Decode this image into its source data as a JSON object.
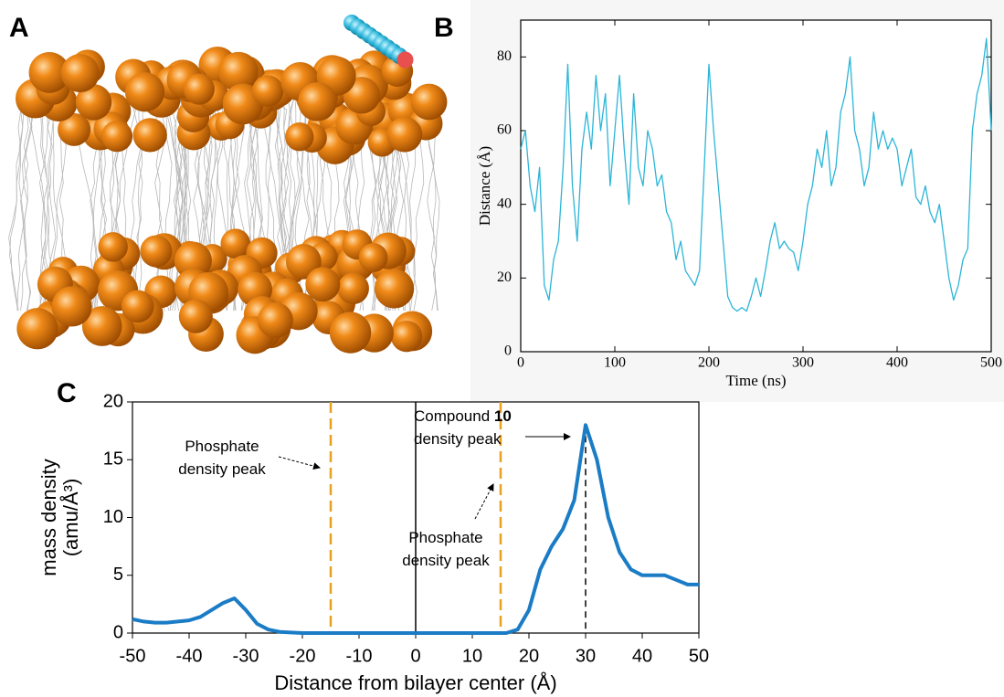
{
  "panel_labels": [
    "A",
    "B",
    "C"
  ],
  "chart_data": [
    {
      "type": "line",
      "xlabel": "Time (ns)",
      "ylabel": [
        "Distance (Å)"
      ],
      "xlim": [
        0,
        500
      ],
      "ylim": [
        0,
        90
      ],
      "xticks": [
        0,
        100,
        200,
        300,
        400,
        500
      ],
      "yticks": [
        0,
        20,
        40,
        60,
        80
      ],
      "series": [
        {
          "color": "#2bb5d8",
          "x": [
            0,
            5,
            10,
            15,
            20,
            25,
            30,
            35,
            40,
            45,
            50,
            55,
            60,
            65,
            70,
            75,
            80,
            85,
            90,
            95,
            100,
            105,
            110,
            115,
            120,
            125,
            130,
            135,
            140,
            145,
            150,
            155,
            160,
            165,
            170,
            175,
            180,
            185,
            190,
            195,
            200,
            205,
            210,
            215,
            220,
            225,
            230,
            235,
            240,
            245,
            250,
            255,
            260,
            265,
            270,
            275,
            280,
            285,
            290,
            295,
            300,
            305,
            310,
            315,
            320,
            325,
            330,
            335,
            340,
            345,
            350,
            355,
            360,
            365,
            370,
            375,
            380,
            385,
            390,
            395,
            400,
            405,
            410,
            415,
            420,
            425,
            430,
            435,
            440,
            445,
            450,
            455,
            460,
            465,
            470,
            475,
            480,
            485,
            490,
            495,
            500
          ],
          "values": [
            55,
            60,
            45,
            38,
            50,
            18,
            14,
            25,
            30,
            50,
            78,
            45,
            30,
            55,
            65,
            55,
            75,
            60,
            70,
            45,
            60,
            75,
            55,
            40,
            70,
            50,
            45,
            60,
            55,
            45,
            48,
            38,
            35,
            25,
            30,
            22,
            20,
            18,
            22,
            50,
            78,
            60,
            45,
            30,
            15,
            12,
            11,
            12,
            11,
            15,
            20,
            15,
            22,
            30,
            35,
            28,
            30,
            28,
            27,
            22,
            30,
            40,
            45,
            55,
            50,
            60,
            45,
            50,
            65,
            70,
            80,
            60,
            55,
            45,
            50,
            65,
            55,
            60,
            55,
            58,
            55,
            45,
            50,
            55,
            42,
            40,
            45,
            38,
            35,
            40,
            30,
            20,
            14,
            18,
            25,
            28,
            60,
            70,
            75,
            85,
            60
          ]
        }
      ]
    },
    {
      "type": "line",
      "xlabel": "Distance from bilayer center (Å)",
      "ylabel": [
        "mass density",
        "(amu/Å³)"
      ],
      "xlim": [
        -50,
        50
      ],
      "ylim": [
        0,
        20
      ],
      "xticks": [
        -50,
        -40,
        -30,
        -20,
        -10,
        0,
        10,
        20,
        30,
        40,
        50
      ],
      "yticks": [
        0,
        5,
        10,
        15,
        20
      ],
      "series": [
        {
          "color": "#1b7cc6",
          "x": [
            -50,
            -48,
            -46,
            -44,
            -42,
            -40,
            -38,
            -36,
            -34,
            -32,
            -30,
            -28,
            -26,
            -24,
            -22,
            -20,
            -18,
            -16,
            -14,
            -12,
            -10,
            -8,
            -6,
            -4,
            -2,
            0,
            2,
            4,
            6,
            8,
            10,
            12,
            14,
            16,
            18,
            20,
            22,
            24,
            26,
            28,
            30,
            32,
            34,
            36,
            38,
            40,
            42,
            44,
            46,
            48,
            50
          ],
          "values": [
            1.2,
            1.0,
            0.9,
            0.9,
            1.0,
            1.1,
            1.4,
            2.0,
            2.6,
            3.0,
            2.0,
            0.8,
            0.3,
            0.1,
            0.05,
            0,
            0,
            0,
            0,
            0,
            0,
            0,
            0,
            0,
            0,
            0,
            0,
            0,
            0,
            0,
            0,
            0,
            0,
            0,
            0.3,
            2,
            5.5,
            7.5,
            9,
            11.5,
            18,
            15,
            10,
            7,
            5.5,
            5,
            5,
            5,
            4.6,
            4.2,
            4.2
          ]
        }
      ],
      "vlines": [
        {
          "x": -15,
          "color": "#e8a020",
          "style": "dashed"
        },
        {
          "x": 0,
          "color": "#000000",
          "style": "solid"
        },
        {
          "x": 15,
          "color": "#e8a020",
          "style": "dashed"
        },
        {
          "x": 30,
          "color": "#000000",
          "style": "dashed"
        }
      ],
      "annotations": [
        {
          "lines": [
            [
              "Phosphate"
            ],
            [
              "density peak"
            ]
          ]
        },
        {
          "lines": [
            [
              "Phosphate"
            ],
            [
              "density peak"
            ]
          ]
        },
        {
          "lines": [
            [
              "Compound ",
              "10"
            ],
            [
              "density peak"
            ]
          ]
        }
      ]
    }
  ]
}
